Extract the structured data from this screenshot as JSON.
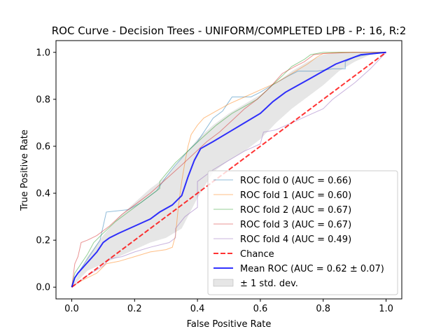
{
  "chart_data": {
    "type": "line",
    "title": "ROC Curve - Decision Trees - UNIFORM/COMPLETED LPB - P: 16, R:2",
    "xlabel": "False Positive Rate",
    "ylabel": "True Positive Rate",
    "xlim": [
      -0.05,
      1.05
    ],
    "ylim": [
      -0.05,
      1.05
    ],
    "xticks": [
      "0.0",
      "0.2",
      "0.4",
      "0.6",
      "0.8",
      "1.0"
    ],
    "yticks": [
      "0.0",
      "0.2",
      "0.4",
      "0.6",
      "0.8",
      "1.0"
    ],
    "legend_position": "lower right",
    "series": [
      {
        "name": "ROC fold 0 (AUC = 0.66)",
        "color": "#1f77b4",
        "style": "thin",
        "points": [
          [
            0,
            0
          ],
          [
            0.01,
            0.04
          ],
          [
            0.03,
            0.08
          ],
          [
            0.05,
            0.12
          ],
          [
            0.07,
            0.16
          ],
          [
            0.09,
            0.2
          ],
          [
            0.1,
            0.26
          ],
          [
            0.11,
            0.32
          ],
          [
            0.18,
            0.33
          ],
          [
            0.22,
            0.36
          ],
          [
            0.27,
            0.41
          ],
          [
            0.3,
            0.47
          ],
          [
            0.33,
            0.52
          ],
          [
            0.37,
            0.58
          ],
          [
            0.4,
            0.62
          ],
          [
            0.42,
            0.66
          ],
          [
            0.45,
            0.72
          ],
          [
            0.48,
            0.75
          ],
          [
            0.5,
            0.79
          ],
          [
            0.51,
            0.81
          ],
          [
            0.54,
            0.81
          ],
          [
            0.57,
            0.81
          ],
          [
            0.6,
            0.83
          ],
          [
            0.65,
            0.87
          ],
          [
            0.69,
            0.9
          ],
          [
            0.72,
            0.92
          ],
          [
            0.78,
            0.92
          ],
          [
            0.83,
            0.93
          ],
          [
            0.87,
            0.93
          ],
          [
            0.87,
            0.96
          ],
          [
            0.9,
            0.98
          ],
          [
            0.94,
            0.99
          ],
          [
            1,
            1
          ]
        ]
      },
      {
        "name": "ROC fold 1 (AUC = 0.60)",
        "color": "#ff7f0e",
        "style": "thin",
        "points": [
          [
            0,
            0
          ],
          [
            0.02,
            0.02
          ],
          [
            0.05,
            0.04
          ],
          [
            0.08,
            0.06
          ],
          [
            0.11,
            0.1
          ],
          [
            0.15,
            0.11
          ],
          [
            0.2,
            0.13
          ],
          [
            0.25,
            0.15
          ],
          [
            0.3,
            0.16
          ],
          [
            0.32,
            0.17
          ],
          [
            0.33,
            0.22
          ],
          [
            0.34,
            0.35
          ],
          [
            0.35,
            0.45
          ],
          [
            0.36,
            0.53
          ],
          [
            0.37,
            0.6
          ],
          [
            0.38,
            0.65
          ],
          [
            0.4,
            0.69
          ],
          [
            0.42,
            0.72
          ],
          [
            0.46,
            0.75
          ],
          [
            0.5,
            0.78
          ],
          [
            0.55,
            0.81
          ],
          [
            0.6,
            0.84
          ],
          [
            0.65,
            0.87
          ],
          [
            0.7,
            0.91
          ],
          [
            0.75,
            0.95
          ],
          [
            0.78,
            0.98
          ],
          [
            0.8,
            0.995
          ],
          [
            0.85,
            1
          ],
          [
            0.9,
            1
          ],
          [
            1,
            1
          ]
        ]
      },
      {
        "name": "ROC fold 2 (AUC = 0.67)",
        "color": "#2ca02c",
        "style": "thin",
        "points": [
          [
            0,
            0
          ],
          [
            0.01,
            0.06
          ],
          [
            0.03,
            0.1
          ],
          [
            0.05,
            0.14
          ],
          [
            0.07,
            0.19
          ],
          [
            0.1,
            0.23
          ],
          [
            0.14,
            0.28
          ],
          [
            0.18,
            0.32
          ],
          [
            0.21,
            0.35
          ],
          [
            0.25,
            0.39
          ],
          [
            0.28,
            0.42
          ],
          [
            0.28,
            0.45
          ],
          [
            0.33,
            0.53
          ],
          [
            0.37,
            0.58
          ],
          [
            0.41,
            0.63
          ],
          [
            0.46,
            0.69
          ],
          [
            0.51,
            0.74
          ],
          [
            0.55,
            0.77
          ],
          [
            0.59,
            0.8
          ],
          [
            0.63,
            0.85
          ],
          [
            0.67,
            0.9
          ],
          [
            0.7,
            0.94
          ],
          [
            0.74,
            0.97
          ],
          [
            0.76,
            0.99
          ],
          [
            0.8,
            1
          ],
          [
            0.9,
            1
          ],
          [
            1,
            1
          ]
        ]
      },
      {
        "name": "ROC fold 3 (AUC = 0.67)",
        "color": "#d62728",
        "style": "thin",
        "points": [
          [
            0,
            0
          ],
          [
            0.01,
            0.1
          ],
          [
            0.02,
            0.13
          ],
          [
            0.03,
            0.19
          ],
          [
            0.05,
            0.2
          ],
          [
            0.08,
            0.22
          ],
          [
            0.12,
            0.26
          ],
          [
            0.16,
            0.31
          ],
          [
            0.2,
            0.35
          ],
          [
            0.25,
            0.4
          ],
          [
            0.3,
            0.46
          ],
          [
            0.35,
            0.52
          ],
          [
            0.39,
            0.57
          ],
          [
            0.43,
            0.62
          ],
          [
            0.47,
            0.66
          ],
          [
            0.51,
            0.71
          ],
          [
            0.55,
            0.76
          ],
          [
            0.59,
            0.8
          ],
          [
            0.63,
            0.85
          ],
          [
            0.67,
            0.91
          ],
          [
            0.71,
            0.94
          ],
          [
            0.74,
            0.96
          ],
          [
            0.77,
            0.99
          ],
          [
            0.8,
            0.995
          ],
          [
            0.9,
            1
          ],
          [
            1,
            1
          ]
        ]
      },
      {
        "name": "ROC fold 4 (AUC = 0.49)",
        "color": "#9467bd",
        "style": "thin",
        "points": [
          [
            0,
            0
          ],
          [
            0.05,
            0.05
          ],
          [
            0.1,
            0.09
          ],
          [
            0.12,
            0.12
          ],
          [
            0.16,
            0.13
          ],
          [
            0.2,
            0.15
          ],
          [
            0.25,
            0.17
          ],
          [
            0.31,
            0.19
          ],
          [
            0.33,
            0.21
          ],
          [
            0.33,
            0.25
          ],
          [
            0.36,
            0.3
          ],
          [
            0.4,
            0.34
          ],
          [
            0.4,
            0.45
          ],
          [
            0.45,
            0.5
          ],
          [
            0.5,
            0.54
          ],
          [
            0.55,
            0.58
          ],
          [
            0.6,
            0.61
          ],
          [
            0.61,
            0.66
          ],
          [
            0.65,
            0.67
          ],
          [
            0.7,
            0.7
          ],
          [
            0.75,
            0.73
          ],
          [
            0.8,
            0.76
          ],
          [
            0.83,
            0.8
          ],
          [
            0.86,
            0.83
          ],
          [
            0.9,
            0.87
          ],
          [
            0.95,
            0.93
          ],
          [
            1,
            1
          ]
        ]
      },
      {
        "name": "Chance",
        "color": "#ff0000",
        "style": "dashed",
        "points": [
          [
            0,
            0
          ],
          [
            1,
            1
          ]
        ]
      },
      {
        "name": "Mean ROC (AUC = 0.62 ± 0.07)",
        "color": "#0000ff",
        "style": "thick",
        "points": [
          [
            0,
            0
          ],
          [
            0.01,
            0.04
          ],
          [
            0.02,
            0.06
          ],
          [
            0.04,
            0.09
          ],
          [
            0.06,
            0.12
          ],
          [
            0.08,
            0.15
          ],
          [
            0.1,
            0.19
          ],
          [
            0.12,
            0.21
          ],
          [
            0.15,
            0.23
          ],
          [
            0.2,
            0.26
          ],
          [
            0.25,
            0.29
          ],
          [
            0.28,
            0.32
          ],
          [
            0.32,
            0.35
          ],
          [
            0.35,
            0.39
          ],
          [
            0.37,
            0.47
          ],
          [
            0.39,
            0.54
          ],
          [
            0.41,
            0.59
          ],
          [
            0.45,
            0.62
          ],
          [
            0.5,
            0.66
          ],
          [
            0.55,
            0.7
          ],
          [
            0.6,
            0.74
          ],
          [
            0.64,
            0.79
          ],
          [
            0.68,
            0.83
          ],
          [
            0.72,
            0.86
          ],
          [
            0.76,
            0.89
          ],
          [
            0.8,
            0.92
          ],
          [
            0.84,
            0.95
          ],
          [
            0.88,
            0.97
          ],
          [
            0.92,
            0.99
          ],
          [
            0.96,
            0.995
          ],
          [
            1,
            1
          ]
        ]
      }
    ],
    "band": {
      "name": "± 1 std. dev.",
      "color": "#808080",
      "x": [
        0,
        0.05,
        0.1,
        0.15,
        0.2,
        0.25,
        0.3,
        0.35,
        0.4,
        0.45,
        0.5,
        0.55,
        0.6,
        0.65,
        0.7,
        0.75,
        0.8,
        0.85,
        0.9,
        0.95,
        1
      ],
      "upper": [
        0,
        0.13,
        0.22,
        0.3,
        0.36,
        0.42,
        0.47,
        0.55,
        0.63,
        0.69,
        0.74,
        0.78,
        0.82,
        0.87,
        0.92,
        0.96,
        0.99,
        1,
        1,
        1,
        1
      ],
      "lower": [
        0,
        0.07,
        0.1,
        0.13,
        0.16,
        0.19,
        0.21,
        0.25,
        0.38,
        0.49,
        0.54,
        0.58,
        0.63,
        0.7,
        0.76,
        0.81,
        0.86,
        0.92,
        0.96,
        0.99,
        1
      ]
    }
  }
}
